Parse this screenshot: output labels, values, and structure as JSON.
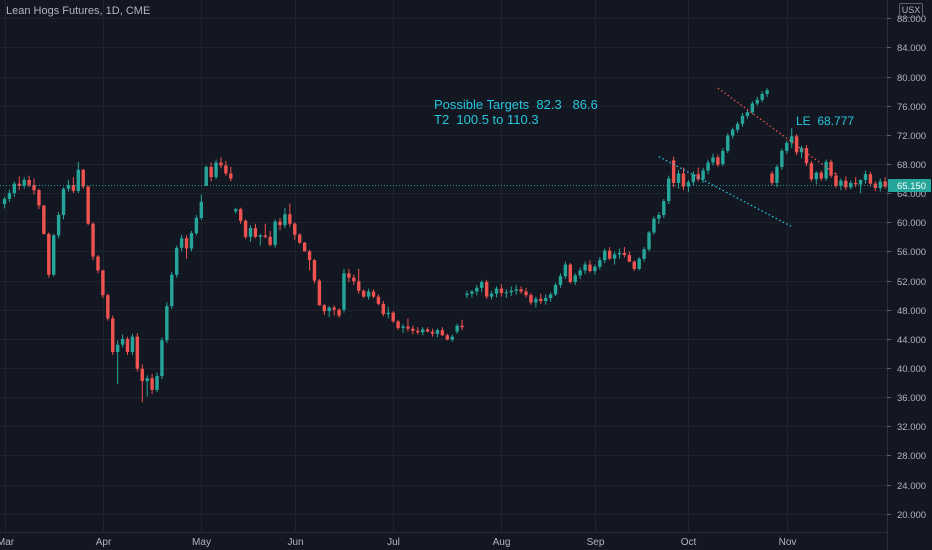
{
  "header": {
    "title": "Lean Hogs Futures, 1D, CME",
    "currency_button": "USX"
  },
  "annotations": {
    "targets_line1": "Possible Targets  82.3   86.6",
    "targets_line2": "T2  100.5 to 110.3",
    "le_label": "LE  68.777"
  },
  "colors": {
    "background": "#131722",
    "up": "#26a69a",
    "down": "#ef5350",
    "grid": "#1f2330",
    "text": "#b2b5be",
    "price_line": "#26a69a",
    "annotation": "#26c6da",
    "resistance": "#ef5350",
    "support": "#26c6da"
  },
  "chart_data": {
    "type": "candlestick",
    "title": "Lean Hogs Futures, 1D, CME",
    "ylim": [
      17.5,
      90.5
    ],
    "y_ticks": [
      "88.000",
      "84.000",
      "80.000",
      "76.000",
      "72.000",
      "68.000",
      "64.000",
      "60.000",
      "56.000",
      "52.000",
      "48.000",
      "44.000",
      "40.000",
      "36.000",
      "32.000",
      "28.000",
      "24.000",
      "20.000"
    ],
    "y_tick_values": [
      88,
      84,
      80,
      76,
      72,
      68,
      64,
      60,
      56,
      52,
      48,
      44,
      40,
      36,
      32,
      28,
      24,
      20
    ],
    "x_ticks": [
      {
        "label": "Mar",
        "index": 0
      },
      {
        "label": "Apr",
        "index": 20
      },
      {
        "label": "May",
        "index": 40
      },
      {
        "label": "Jun",
        "index": 59
      },
      {
        "label": "Jul",
        "index": 79
      },
      {
        "label": "Aug",
        "index": 101
      },
      {
        "label": "Sep",
        "index": 120
      },
      {
        "label": "Oct",
        "index": 139
      },
      {
        "label": "Nov",
        "index": 159
      }
    ],
    "candles": [
      [
        62.5,
        63.5,
        61.9,
        63.2
      ],
      [
        63.2,
        64.5,
        62.8,
        64.0
      ],
      [
        64.0,
        65.6,
        63.5,
        65.3
      ],
      [
        65.3,
        66.3,
        64.4,
        65.0
      ],
      [
        65.0,
        66.2,
        64.6,
        65.8
      ],
      [
        65.8,
        66.4,
        64.8,
        65.1
      ],
      [
        65.1,
        66.0,
        63.8,
        64.4
      ],
      [
        64.4,
        64.6,
        61.8,
        62.3
      ],
      [
        62.3,
        62.4,
        58.3,
        58.4
      ],
      [
        58.4,
        58.6,
        52.4,
        52.8
      ],
      [
        52.8,
        58.4,
        52.6,
        58.2
      ],
      [
        58.2,
        61.4,
        57.8,
        61.0
      ],
      [
        61.0,
        64.8,
        60.4,
        64.6
      ],
      [
        64.6,
        65.8,
        64.2,
        65.1
      ],
      [
        65.1,
        66.2,
        64.0,
        64.3
      ],
      [
        64.3,
        68.3,
        64.0,
        67.2
      ],
      [
        67.2,
        67.3,
        64.6,
        64.9
      ],
      [
        64.9,
        65.0,
        59.6,
        59.8
      ],
      [
        59.8,
        60.0,
        54.8,
        55.3
      ],
      [
        55.3,
        55.5,
        53.0,
        53.4
      ],
      [
        53.4,
        53.5,
        49.6,
        50.0
      ],
      [
        50.0,
        50.2,
        46.5,
        46.8
      ],
      [
        46.8,
        47.2,
        41.8,
        42.2
      ],
      [
        42.2,
        43.8,
        37.8,
        43.2
      ],
      [
        43.2,
        44.6,
        42.8,
        44.0
      ],
      [
        44.0,
        44.3,
        41.8,
        42.2
      ],
      [
        42.2,
        44.7,
        41.8,
        44.3
      ],
      [
        44.3,
        44.8,
        39.5,
        39.9
      ],
      [
        39.9,
        40.5,
        35.3,
        38.2
      ],
      [
        38.2,
        39.0,
        36.1,
        38.6
      ],
      [
        38.6,
        39.2,
        36.4,
        37.0
      ],
      [
        37.0,
        39.4,
        36.7,
        38.9
      ],
      [
        38.9,
        44.2,
        38.5,
        43.8
      ],
      [
        43.8,
        49.0,
        43.4,
        48.5
      ],
      [
        48.5,
        53.2,
        48.1,
        52.8
      ],
      [
        52.8,
        56.8,
        52.4,
        56.5
      ],
      [
        56.5,
        58.3,
        56.0,
        57.8
      ],
      [
        57.8,
        58.2,
        55.0,
        56.4
      ],
      [
        56.4,
        58.8,
        56.0,
        58.5
      ],
      [
        58.5,
        61.0,
        58.2,
        60.6
      ],
      [
        60.6,
        63.8,
        60.3,
        62.8
      ],
      [
        65.0,
        67.8,
        65.0,
        67.6
      ],
      [
        67.6,
        68.2,
        65.6,
        66.2
      ],
      [
        66.2,
        68.6,
        65.9,
        68.2
      ],
      [
        68.2,
        68.9,
        67.4,
        67.8
      ],
      [
        67.8,
        68.4,
        66.4,
        66.7
      ],
      [
        66.7,
        67.6,
        65.6,
        66.0
      ],
      [
        61.5,
        62.0,
        61.2,
        61.8
      ],
      [
        61.8,
        62.0,
        59.8,
        60.2
      ],
      [
        60.2,
        60.4,
        57.7,
        58.0
      ],
      [
        58.0,
        59.6,
        57.3,
        59.2
      ],
      [
        59.2,
        59.8,
        57.8,
        58.0
      ],
      [
        58.0,
        58.4,
        56.8,
        58.2
      ],
      [
        58.2,
        59.8,
        57.8,
        58.0
      ],
      [
        58.0,
        58.8,
        56.7,
        56.9
      ],
      [
        56.9,
        60.4,
        56.5,
        60.1
      ],
      [
        60.1,
        60.6,
        58.9,
        59.6
      ],
      [
        59.6,
        62.0,
        59.2,
        61.1
      ],
      [
        61.1,
        62.6,
        59.4,
        59.8
      ],
      [
        59.8,
        60.0,
        57.6,
        58.3
      ],
      [
        58.3,
        58.5,
        57.0,
        57.2
      ],
      [
        57.2,
        57.3,
        56.0,
        56.0
      ],
      [
        56.0,
        56.2,
        53.4,
        54.8
      ],
      [
        54.8,
        55.0,
        51.6,
        52.0
      ],
      [
        52.0,
        52.2,
        48.6,
        48.6
      ],
      [
        48.6,
        48.8,
        47.3,
        47.8
      ],
      [
        47.8,
        48.5,
        47.0,
        48.3
      ],
      [
        48.3,
        48.6,
        47.2,
        48.0
      ],
      [
        48.0,
        48.2,
        46.9,
        47.2
      ],
      [
        48.0,
        53.6,
        47.6,
        53.0
      ],
      [
        53.0,
        53.6,
        51.8,
        52.4
      ],
      [
        52.4,
        52.8,
        51.4,
        51.9
      ],
      [
        51.9,
        53.6,
        50.2,
        50.6
      ],
      [
        50.6,
        50.8,
        49.6,
        49.8
      ],
      [
        49.8,
        50.9,
        49.4,
        50.5
      ],
      [
        50.5,
        50.8,
        49.6,
        49.8
      ],
      [
        49.8,
        50.1,
        48.6,
        48.8
      ],
      [
        48.8,
        49.2,
        47.1,
        47.4
      ],
      [
        47.4,
        48.4,
        46.8,
        47.6
      ],
      [
        47.6,
        47.8,
        46.2,
        46.4
      ],
      [
        46.4,
        46.6,
        45.2,
        45.5
      ],
      [
        45.5,
        46.0,
        44.8,
        45.7
      ],
      [
        45.7,
        46.8,
        45.0,
        45.4
      ],
      [
        45.4,
        45.8,
        44.6,
        45.1
      ],
      [
        45.1,
        45.6,
        44.6,
        44.9
      ],
      [
        44.9,
        45.6,
        44.5,
        45.3
      ],
      [
        45.3,
        45.6,
        44.9,
        45.0
      ],
      [
        45.0,
        45.4,
        44.3,
        44.7
      ],
      [
        44.7,
        45.4,
        44.2,
        45.2
      ],
      [
        45.2,
        45.6,
        44.4,
        44.5
      ],
      [
        44.5,
        44.7,
        43.8,
        43.9
      ],
      [
        43.9,
        44.6,
        43.6,
        44.3
      ],
      [
        45.0,
        46.1,
        44.7,
        45.8
      ],
      [
        45.8,
        46.6,
        45.2,
        45.6
      ],
      [
        50.0,
        50.6,
        49.6,
        50.2
      ],
      [
        50.2,
        50.7,
        49.7,
        50.5
      ],
      [
        50.5,
        51.4,
        50.0,
        51.0
      ],
      [
        51.0,
        52.0,
        50.4,
        51.8
      ],
      [
        51.8,
        52.1,
        49.5,
        49.8
      ],
      [
        49.8,
        50.6,
        49.4,
        50.2
      ],
      [
        50.2,
        51.2,
        49.7,
        50.9
      ],
      [
        50.9,
        51.5,
        49.8,
        50.3
      ],
      [
        50.3,
        50.8,
        49.6,
        50.4
      ],
      [
        50.4,
        51.2,
        49.9,
        50.6
      ],
      [
        50.6,
        51.4,
        50.1,
        50.8
      ],
      [
        50.8,
        51.2,
        50.2,
        50.5
      ],
      [
        50.5,
        51.0,
        49.7,
        50.0
      ],
      [
        50.0,
        50.3,
        48.7,
        49.0
      ],
      [
        49.0,
        49.8,
        48.3,
        49.5
      ],
      [
        49.5,
        50.2,
        48.8,
        49.2
      ],
      [
        49.2,
        50.1,
        48.7,
        49.6
      ],
      [
        49.6,
        50.4,
        49.1,
        50.1
      ],
      [
        50.1,
        51.7,
        49.9,
        51.4
      ],
      [
        51.4,
        53.0,
        51.0,
        52.6
      ],
      [
        52.6,
        54.6,
        52.2,
        54.2
      ],
      [
        54.2,
        54.4,
        51.6,
        51.8
      ],
      [
        51.8,
        53.0,
        51.4,
        52.7
      ],
      [
        52.7,
        53.8,
        52.2,
        53.4
      ],
      [
        53.4,
        54.6,
        52.9,
        54.2
      ],
      [
        54.2,
        54.8,
        53.1,
        53.3
      ],
      [
        53.3,
        54.2,
        52.8,
        53.9
      ],
      [
        53.9,
        55.2,
        53.5,
        54.8
      ],
      [
        54.8,
        56.4,
        54.4,
        56.1
      ],
      [
        56.1,
        56.6,
        54.8,
        55.0
      ],
      [
        55.0,
        56.0,
        54.2,
        55.6
      ],
      [
        55.6,
        56.4,
        55.0,
        55.8
      ],
      [
        55.8,
        56.6,
        55.2,
        55.5
      ],
      [
        55.5,
        56.0,
        54.5,
        54.6
      ],
      [
        54.6,
        54.8,
        53.3,
        53.6
      ],
      [
        53.6,
        55.2,
        53.4,
        55.0
      ],
      [
        55.0,
        56.6,
        54.6,
        56.3
      ],
      [
        56.3,
        58.8,
        56.0,
        58.6
      ],
      [
        58.6,
        60.8,
        58.3,
        60.5
      ],
      [
        60.5,
        61.4,
        59.8,
        61.0
      ],
      [
        61.0,
        63.2,
        60.6,
        62.9
      ],
      [
        62.9,
        66.4,
        62.5,
        66.0
      ],
      [
        68.5,
        69.0,
        64.8,
        65.4
      ],
      [
        65.4,
        67.2,
        64.6,
        66.7
      ],
      [
        66.7,
        67.5,
        64.4,
        64.9
      ],
      [
        64.9,
        65.8,
        64.1,
        65.5
      ],
      [
        65.5,
        67.0,
        65.0,
        66.6
      ],
      [
        66.6,
        67.5,
        65.6,
        65.9
      ],
      [
        65.9,
        67.5,
        65.4,
        67.1
      ],
      [
        67.1,
        68.6,
        66.6,
        68.2
      ],
      [
        68.2,
        69.4,
        67.8,
        68.9
      ],
      [
        68.9,
        69.3,
        67.6,
        67.9
      ],
      [
        68.0,
        70.2,
        67.7,
        69.8
      ],
      [
        69.8,
        72.2,
        69.5,
        71.9
      ],
      [
        71.9,
        73.0,
        71.5,
        72.7
      ],
      [
        72.7,
        73.8,
        72.3,
        73.5
      ],
      [
        73.5,
        75.0,
        73.1,
        74.6
      ],
      [
        74.6,
        75.4,
        74.2,
        75.1
      ],
      [
        75.1,
        76.6,
        74.8,
        76.3
      ],
      [
        76.3,
        77.2,
        76.0,
        76.8
      ],
      [
        76.8,
        78.0,
        76.5,
        77.6
      ],
      [
        77.6,
        78.4,
        77.2,
        78.1
      ],
      [
        66.7,
        67.0,
        65.1,
        65.4
      ],
      [
        65.4,
        67.9,
        64.8,
        67.6
      ],
      [
        67.6,
        70.1,
        67.2,
        69.8
      ],
      [
        69.8,
        71.2,
        69.4,
        70.9
      ],
      [
        70.9,
        72.9,
        70.2,
        71.8
      ],
      [
        71.8,
        72.1,
        69.2,
        69.6
      ],
      [
        69.6,
        70.5,
        68.8,
        70.2
      ],
      [
        70.2,
        70.6,
        67.7,
        68.1
      ],
      [
        68.1,
        68.4,
        65.6,
        65.9
      ],
      [
        65.9,
        67.0,
        65.2,
        66.8
      ],
      [
        66.8,
        67.1,
        65.7,
        66.0
      ],
      [
        66.0,
        68.6,
        65.7,
        68.3
      ],
      [
        68.3,
        68.6,
        66.1,
        66.4
      ],
      [
        66.4,
        66.8,
        64.7,
        65.0
      ],
      [
        65.0,
        66.0,
        64.4,
        65.7
      ],
      [
        65.7,
        66.3,
        64.4,
        64.8
      ],
      [
        64.8,
        65.7,
        64.5,
        65.4
      ],
      [
        65.4,
        66.2,
        64.8,
        65.2
      ],
      [
        65.2,
        65.9,
        64.0,
        65.8
      ],
      [
        65.8,
        67.1,
        65.3,
        66.6
      ],
      [
        66.6,
        66.9,
        64.9,
        65.3
      ],
      [
        65.3,
        65.6,
        64.3,
        64.7
      ],
      [
        64.7,
        66.0,
        64.2,
        65.6
      ],
      [
        65.6,
        66.2,
        64.6,
        64.9
      ],
      [
        64.9,
        65.3,
        63.5,
        64.1
      ],
      [
        64.1,
        65.4,
        63.8,
        65.0
      ],
      [
        65.0,
        65.3,
        64.3,
        64.8
      ],
      [
        64.8,
        65.4,
        64.4,
        65.15
      ]
    ],
    "current_price": 65.15,
    "current_price_label": "65.150",
    "support_line": [
      [
        133,
        69.0
      ],
      [
        160,
        59.4
      ]
    ],
    "resistance_line": [
      [
        145,
        78.4
      ],
      [
        169,
        66.6
      ]
    ],
    "grid": true
  }
}
